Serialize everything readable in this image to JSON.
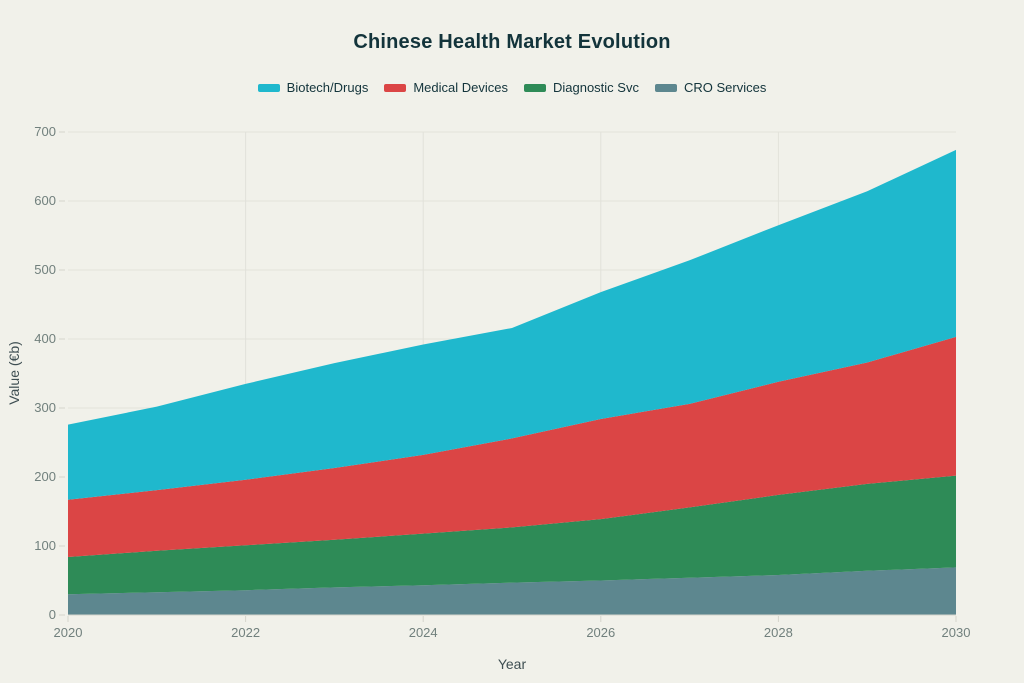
{
  "title": "Chinese Health Market Evolution",
  "legend": [
    "Biotech/Drugs",
    "Medical Devices",
    "Diagnostic Svc",
    "CRO Services"
  ],
  "colors": {
    "background": "#F1F1EA",
    "gridline": "#E2E2DA",
    "axis_line": "#D5D5CC",
    "tick_text": "#71807D",
    "axis_title_text": "#3E4E52",
    "title_text": "#13343B"
  },
  "chart_data": {
    "type": "area",
    "stacked": true,
    "title": "Chinese Health Market Evolution",
    "xlabel": "Year",
    "ylabel": "Value (€b)",
    "x": [
      2020,
      2021,
      2022,
      2023,
      2024,
      2025,
      2026,
      2027,
      2028,
      2029,
      2030
    ],
    "x_tick_labels": [
      "2020",
      "2022",
      "2024",
      "2026",
      "2028",
      "2030"
    ],
    "x_tick_years": [
      2020,
      2022,
      2024,
      2026,
      2028,
      2030
    ],
    "x_gridline_years": [
      2022,
      2024,
      2026,
      2028
    ],
    "y_ticks": [
      0,
      100,
      200,
      300,
      400,
      500,
      600,
      700
    ],
    "ylim": [
      0,
      700
    ],
    "grid": true,
    "legend_position": "top-center",
    "stack_order_bottom_to_top": [
      "CRO Services",
      "Diagnostic Svc",
      "Medical Devices",
      "Biotech/Drugs"
    ],
    "series": [
      {
        "name": "Biotech/Drugs",
        "color": "#1FB8CD",
        "values": [
          109,
          121,
          139,
          152,
          160,
          160,
          184,
          208,
          227,
          248,
          271
        ]
      },
      {
        "name": "Medical Devices",
        "color": "#DB4545",
        "values": [
          83,
          88,
          95,
          104,
          114,
          129,
          145,
          150,
          164,
          176,
          201
        ]
      },
      {
        "name": "Diagnostic Svc",
        "color": "#2E8B57",
        "values": [
          54,
          60,
          65,
          69,
          75,
          80,
          89,
          102,
          116,
          126,
          133
        ]
      },
      {
        "name": "CRO Services",
        "color": "#5D878F",
        "values": [
          30,
          33,
          36,
          40,
          43,
          47,
          50,
          54,
          58,
          64,
          69
        ]
      }
    ],
    "cumulative_tops_note": "stack boundaries (CRO top / Diag top / Med top / Biotech top) at 2020: 30/84/167/276 and 2030: 69/202/403/674"
  }
}
